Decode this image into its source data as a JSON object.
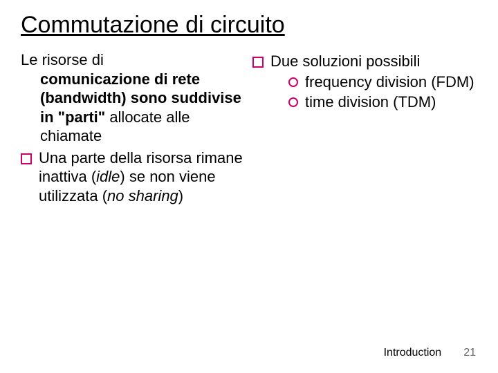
{
  "colors": {
    "bullet_border": "#cc0066",
    "text": "#000000",
    "page_num": "#666666",
    "background": "#ffffff"
  },
  "title": "Commutazione di circuito",
  "left": {
    "intro_line1": "Le risorse di",
    "intro_rest": "comunicazione di rete (bandwidth) sono suddivise in \"parti\" ",
    "intro_tail": "allocate alle chiamate",
    "bullet1_a": "Una parte della risorsa rimane inattiva (",
    "bullet1_idle": "idle",
    "bullet1_b": ") se non viene utilizzata (",
    "bullet1_noshare": "no sharing",
    "bullet1_c": ")"
  },
  "right": {
    "bullet1": "Due soluzioni possibili",
    "sub1": "frequency division (FDM)",
    "sub2": "time division (TDM)"
  },
  "footer": {
    "label": "Introduction",
    "page": "21"
  }
}
